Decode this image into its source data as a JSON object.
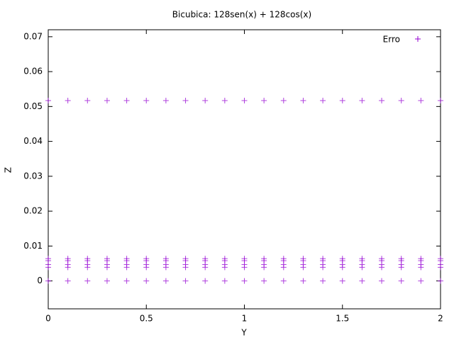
{
  "chart_data": {
    "type": "scatter",
    "title": "Bicubica: 128sen(x) + 128cos(x)",
    "x_label": "Y",
    "y_label": "Z",
    "xlim": [
      0,
      2
    ],
    "ylim": [
      -0.008,
      0.072
    ],
    "xticks": [
      0,
      0.5,
      1,
      1.5,
      2
    ],
    "yticks": [
      0,
      0.01,
      0.02,
      0.03,
      0.04,
      0.05,
      0.06,
      0.07
    ],
    "grid": false,
    "legend": "top-right",
    "series": [
      {
        "name": "Erro",
        "color": "#9400d3",
        "x": [
          0,
          0.1,
          0.2,
          0.3,
          0.4,
          0.5,
          0.6,
          0.7,
          0.8,
          0.9,
          1,
          1.1,
          1.2,
          1.3,
          1.4,
          1.5,
          1.6,
          1.7,
          1.8,
          1.9,
          2,
          0,
          0.1,
          0.2,
          0.3,
          0.4,
          0.5,
          0.6,
          0.7,
          0.8,
          0.9,
          1,
          1.1,
          1.2,
          1.3,
          1.4,
          1.5,
          1.6,
          1.7,
          1.8,
          1.9,
          2,
          0,
          0.1,
          0.2,
          0.3,
          0.4,
          0.5,
          0.6,
          0.7,
          0.8,
          0.9,
          1,
          1.1,
          1.2,
          1.3,
          1.4,
          1.5,
          1.6,
          1.7,
          1.8,
          1.9,
          2,
          0,
          0.1,
          0.2,
          0.3,
          0.4,
          0.5,
          0.6,
          0.7,
          0.8,
          0.9,
          1,
          1.1,
          1.2,
          1.3,
          1.4,
          1.5,
          1.6,
          1.7,
          1.8,
          1.9,
          2,
          0,
          0.1,
          0.2,
          0.3,
          0.4,
          0.5,
          0.6,
          0.7,
          0.8,
          0.9,
          1,
          1.1,
          1.2,
          1.3,
          1.4,
          1.5,
          1.6,
          1.7,
          1.8,
          1.9,
          2,
          0,
          0.1,
          0.2,
          0.3,
          0.4,
          0.5,
          0.6,
          0.7,
          0.8,
          0.9,
          1,
          1.1,
          1.2,
          1.3,
          1.4,
          1.5,
          1.6,
          1.7,
          1.8,
          1.9,
          2
        ],
        "values": [
          0.0517,
          0.0517,
          0.0517,
          0.0517,
          0.0517,
          0.0517,
          0.0517,
          0.0517,
          0.0517,
          0.0517,
          0.0517,
          0.0517,
          0.0517,
          0.0517,
          0.0517,
          0.0517,
          0.0517,
          0.0517,
          0.0517,
          0.0517,
          0.0517,
          0.0064,
          0.0064,
          0.0064,
          0.0064,
          0.0064,
          0.0064,
          0.0064,
          0.0064,
          0.0064,
          0.0064,
          0.0064,
          0.0064,
          0.0064,
          0.0064,
          0.0064,
          0.0064,
          0.0064,
          0.0064,
          0.0064,
          0.0064,
          0.0064,
          0.0058,
          0.0058,
          0.0058,
          0.0058,
          0.0058,
          0.0058,
          0.0058,
          0.0058,
          0.0058,
          0.0058,
          0.0058,
          0.0058,
          0.0058,
          0.0058,
          0.0058,
          0.0058,
          0.0058,
          0.0058,
          0.0058,
          0.0058,
          0.0058,
          0.0047,
          0.0047,
          0.0047,
          0.0047,
          0.0047,
          0.0047,
          0.0047,
          0.0047,
          0.0047,
          0.0047,
          0.0047,
          0.0047,
          0.0047,
          0.0047,
          0.0047,
          0.0047,
          0.0047,
          0.0047,
          0.0047,
          0.0047,
          0.0047,
          0.0039,
          0.0039,
          0.0039,
          0.0039,
          0.0039,
          0.0039,
          0.0039,
          0.0039,
          0.0039,
          0.0039,
          0.0039,
          0.0039,
          0.0039,
          0.0039,
          0.0039,
          0.0039,
          0.0039,
          0.0039,
          0.0039,
          0.0039,
          0.0039,
          0,
          0,
          0,
          0,
          0,
          0,
          0,
          0,
          0,
          0,
          0,
          0,
          0,
          0,
          0,
          0,
          0,
          0,
          0,
          0,
          0
        ]
      }
    ]
  }
}
